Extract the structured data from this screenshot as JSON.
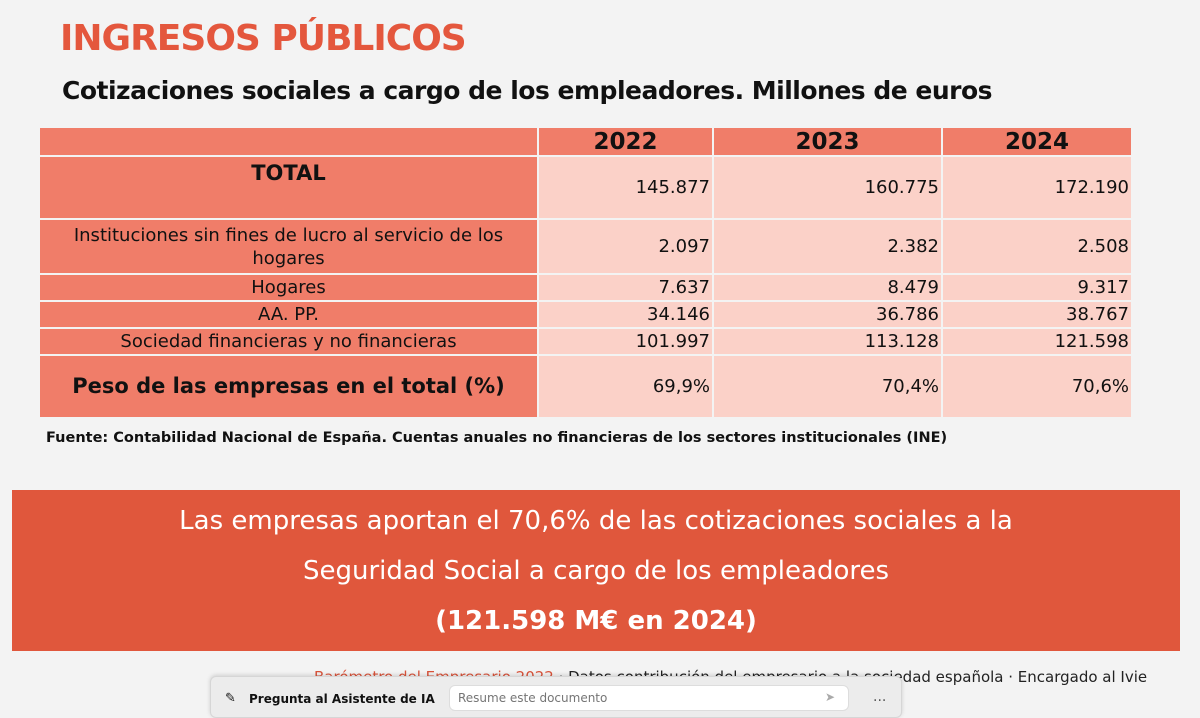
{
  "title": "INGRESOS PÚBLICOS",
  "subtitle": "Cotizaciones sociales a cargo de los empleadores. Millones de euros",
  "table": {
    "headers": [
      "",
      "2022",
      "2023",
      "2024"
    ],
    "rows": [
      {
        "label": "TOTAL",
        "values": [
          "145.877",
          "160.775",
          "172.190"
        ]
      },
      {
        "label": "Instituciones sin fines de lucro al servicio de los hogares",
        "values": [
          "2.097",
          "2.382",
          "2.508"
        ]
      },
      {
        "label": "Hogares",
        "values": [
          "7.637",
          "8.479",
          "9.317"
        ]
      },
      {
        "label": "AA. PP.",
        "values": [
          "34.146",
          "36.786",
          "38.767"
        ]
      },
      {
        "label": "Sociedad financieras y no financieras",
        "values": [
          "101.997",
          "113.128",
          "121.598"
        ]
      },
      {
        "label": "Peso de las empresas en el total (%)",
        "values": [
          "69,9%",
          "70,4%",
          "70,6%"
        ]
      }
    ]
  },
  "source": "Fuente: Contabilidad Nacional de España. Cuentas anuales no financieras de los sectores institucionales (INE)",
  "banner": {
    "line1": "Las empresas aportan el 70,6% de las cotizaciones sociales a la",
    "line2": "Seguridad Social a cargo de los empleadores",
    "line3": "(121.598 M€ en 2024)"
  },
  "footer": {
    "highlight": "Barómetro del Empresario 2022",
    "text": " · Datos contribución del empresario a la sociedad española · Encargado al Ivie"
  },
  "ai_bar": {
    "label": "Pregunta al Asistente de IA",
    "placeholder": "Resume este documento",
    "more": "..."
  },
  "colors": {
    "accent": "#e4573d",
    "header_cell": "#f07d69",
    "value_cell": "#fbd1c8",
    "banner": "#e0573c"
  }
}
